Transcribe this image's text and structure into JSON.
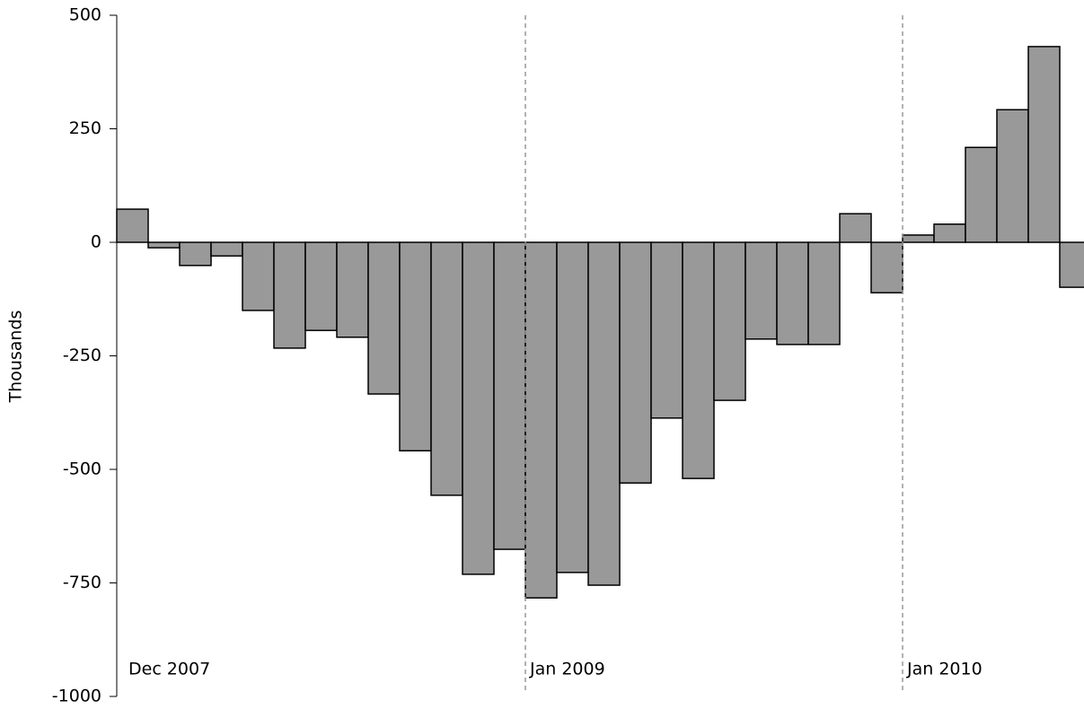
{
  "chart_data": {
    "type": "bar",
    "y_label": "Thousands",
    "categories": [
      "Dec 2007",
      null,
      null,
      null,
      null,
      null,
      null,
      null,
      null,
      null,
      null,
      null,
      null,
      "Jan 2009",
      null,
      null,
      null,
      null,
      null,
      null,
      null,
      null,
      null,
      null,
      null,
      "Jan 2010",
      null,
      null,
      null,
      null,
      null
    ],
    "values": [
      73,
      -12,
      -51,
      -30,
      -150,
      -233,
      -194,
      -209,
      -334,
      -459,
      -557,
      -731,
      -676,
      -783,
      -727,
      -755,
      -530,
      -387,
      -520,
      -348,
      -213,
      -225,
      -225,
      63,
      -111,
      16,
      40,
      209,
      292,
      431,
      -99
    ],
    "color": "#999999",
    "ylim": [
      -1000,
      500
    ],
    "yticks": [
      -1000,
      -750,
      -500,
      -250,
      0,
      250,
      500
    ]
  }
}
